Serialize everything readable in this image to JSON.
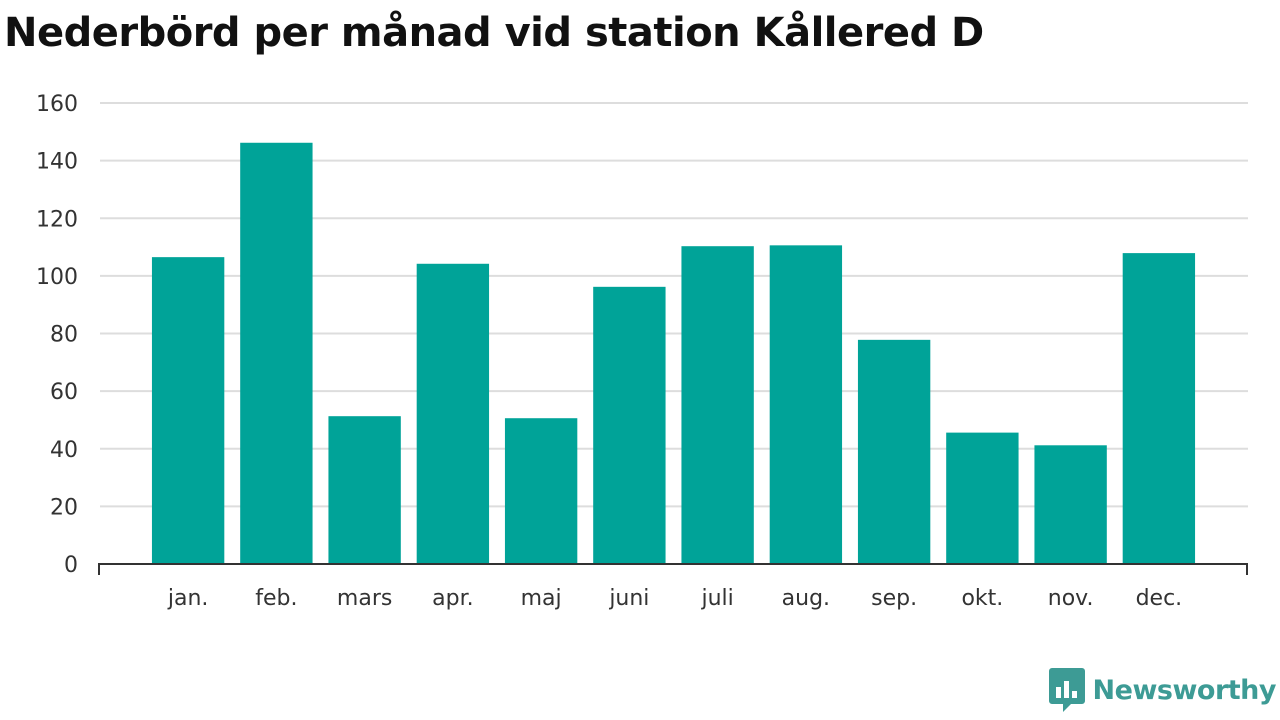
{
  "chart_data": {
    "type": "bar",
    "title": "Nederbörd per månad vid station Kållered D",
    "categories": [
      "jan.",
      "feb.",
      "mars",
      "apr.",
      "maj",
      "juni",
      "juli",
      "aug.",
      "sep.",
      "okt.",
      "nov.",
      "dec."
    ],
    "values": [
      106.5,
      146.2,
      51.3,
      104.2,
      50.6,
      96.2,
      110.3,
      110.6,
      77.8,
      45.6,
      41.2,
      107.9
    ],
    "xlabel": "",
    "ylabel": "",
    "ylim": [
      0,
      160
    ],
    "yticks": [
      0,
      20,
      40,
      60,
      80,
      100,
      120,
      140,
      160
    ],
    "grid": true,
    "bar_color": "#00a398"
  },
  "brand": {
    "name": "Newsworthy",
    "color": "#3d9b95",
    "icon": "newsworthy-logo-icon"
  }
}
